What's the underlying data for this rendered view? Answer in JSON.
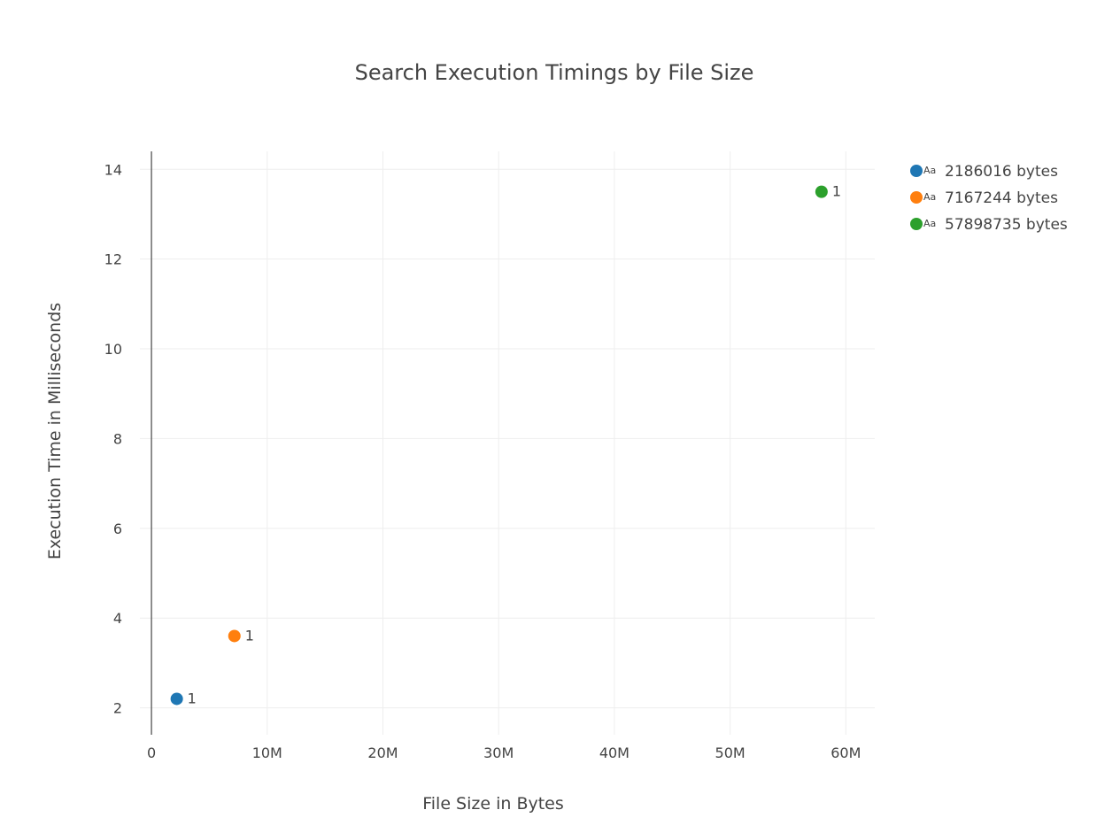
{
  "chart_data": {
    "type": "scatter",
    "title": "Search Execution Timings by File Size",
    "xlabel": "File Size in Bytes",
    "ylabel": "Execution Time in Milliseconds",
    "xlim": [
      -1000000,
      62500000
    ],
    "ylim": [
      1.4,
      14.4
    ],
    "x_ticks": [
      0,
      10000000,
      20000000,
      30000000,
      40000000,
      50000000,
      60000000
    ],
    "x_tick_labels": [
      "0",
      "10M",
      "20M",
      "30M",
      "40M",
      "50M",
      "60M"
    ],
    "y_ticks": [
      2,
      4,
      6,
      8,
      10,
      12,
      14
    ],
    "y_tick_labels": [
      "2",
      "4",
      "6",
      "8",
      "10",
      "12",
      "14"
    ],
    "grid": true,
    "legend_position": "top-right",
    "legend_symbol_text": "Aa",
    "series": [
      {
        "name": "2186016 bytes",
        "color": "#1f77b4",
        "x": [
          2186016
        ],
        "y": [
          2.2
        ],
        "labels": [
          "1"
        ]
      },
      {
        "name": "7167244 bytes",
        "color": "#ff7f0e",
        "x": [
          7167244
        ],
        "y": [
          3.6
        ],
        "labels": [
          "1"
        ]
      },
      {
        "name": "57898735 bytes",
        "color": "#2ca02c",
        "x": [
          57898735
        ],
        "y": [
          13.5
        ],
        "labels": [
          "1"
        ]
      }
    ]
  }
}
